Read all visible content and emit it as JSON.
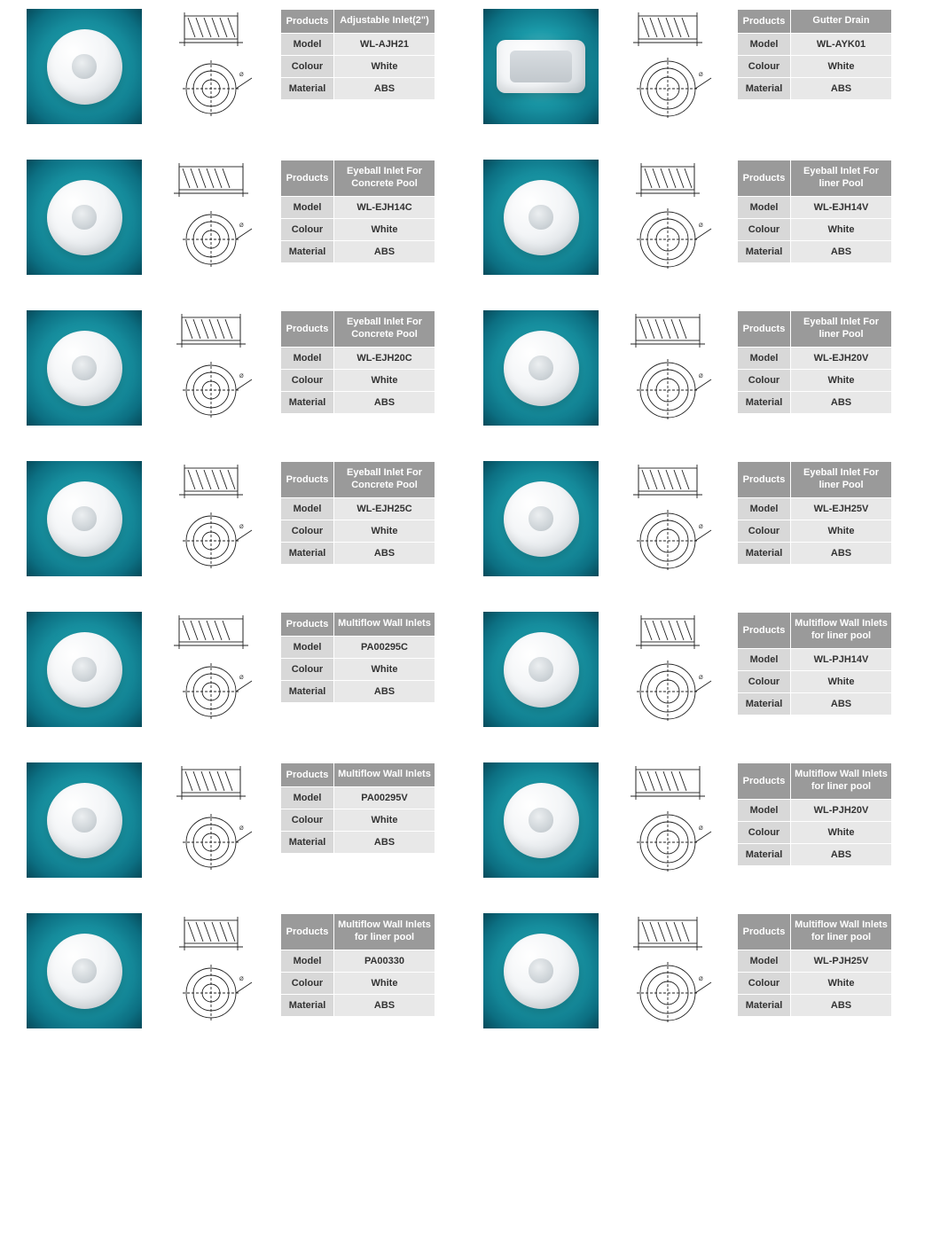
{
  "colors": {
    "header_bg": "#9a9a9a",
    "header_text": "#ffffff",
    "label_bg": "#d8d8d8",
    "value_bg": "#e8e8e8",
    "cell_text": "#333333",
    "photo_bg_center": "#6fd3db",
    "photo_bg_edge": "#064a5a",
    "page_bg": "#ffffff",
    "border": "#ffffff"
  },
  "layout": {
    "columns": 2,
    "rows": 7,
    "card_parts": [
      "photo",
      "diagram",
      "spec_table"
    ],
    "spec_table_rows": [
      "Products",
      "Model",
      "Colour",
      "Material"
    ]
  },
  "labels": {
    "products": "Products",
    "model": "Model",
    "colour": "Colour",
    "material": "Material"
  },
  "products": [
    {
      "product": "Adjustable Inlet(2\")",
      "model": "WL-AJH21",
      "colour": "White",
      "material": "ABS",
      "shape": "round"
    },
    {
      "product": "Gutter Drain",
      "model": "WL-AYK01",
      "colour": "White",
      "material": "ABS",
      "shape": "rect"
    },
    {
      "product": "Eyeball Inlet For Concrete Pool",
      "model": "WL-EJH14C",
      "colour": "White",
      "material": "ABS",
      "shape": "round"
    },
    {
      "product": "Eyeball Inlet For liner Pool",
      "model": "WL-EJH14V",
      "colour": "White",
      "material": "ABS",
      "shape": "round"
    },
    {
      "product": "Eyeball Inlet For Concrete Pool",
      "model": "WL-EJH20C",
      "colour": "White",
      "material": "ABS",
      "shape": "round"
    },
    {
      "product": "Eyeball Inlet For liner Pool",
      "model": "WL-EJH20V",
      "colour": "White",
      "material": "ABS",
      "shape": "round"
    },
    {
      "product": "Eyeball Inlet For Concrete Pool",
      "model": "WL-EJH25C",
      "colour": "White",
      "material": "ABS",
      "shape": "round"
    },
    {
      "product": "Eyeball Inlet For liner Pool",
      "model": "WL-EJH25V",
      "colour": "White",
      "material": "ABS",
      "shape": "round"
    },
    {
      "product": "Multiflow Wall Inlets",
      "model": "PA00295C",
      "colour": "White",
      "material": "ABS",
      "shape": "round"
    },
    {
      "product": "Multiflow Wall Inlets for liner pool",
      "model": "WL-PJH14V",
      "colour": "White",
      "material": "ABS",
      "shape": "round"
    },
    {
      "product": "Multiflow Wall Inlets",
      "model": "PA00295V",
      "colour": "White",
      "material": "ABS",
      "shape": "round"
    },
    {
      "product": "Multiflow Wall Inlets for liner pool",
      "model": "WL-PJH20V",
      "colour": "White",
      "material": "ABS",
      "shape": "round"
    },
    {
      "product": "Multiflow Wall Inlets for liner pool",
      "model": "PA00330",
      "colour": "White",
      "material": "ABS",
      "shape": "round"
    },
    {
      "product": "Multiflow Wall Inlets for liner pool",
      "model": "WL-PJH25V",
      "colour": "White",
      "material": "ABS",
      "shape": "round"
    }
  ],
  "diagram_style": {
    "stroke": "#222222",
    "stroke_width": 0.9,
    "fill": "none",
    "font_size": 6
  }
}
